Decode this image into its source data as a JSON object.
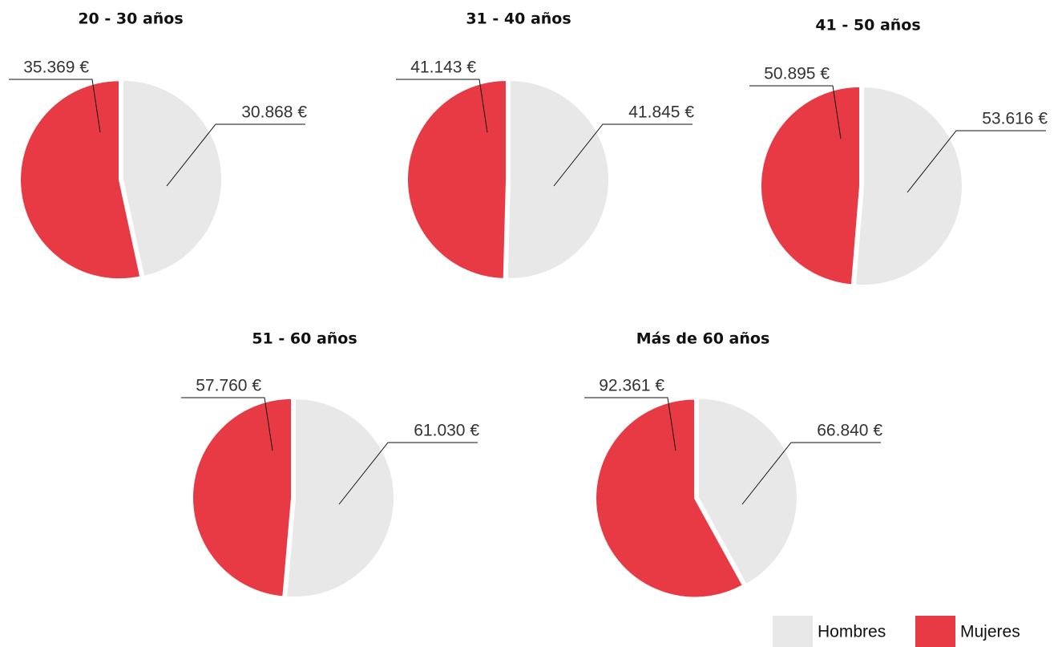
{
  "chart_data": [
    {
      "type": "pie",
      "title": "20 - 30 años",
      "categories": [
        "Hombres",
        "Mujeres"
      ],
      "values": [
        30868,
        35369
      ],
      "value_labels": [
        "30.868 €",
        "35.369 €"
      ],
      "colors": [
        "#e8e8e8",
        "#e83a45"
      ]
    },
    {
      "type": "pie",
      "title": "31 - 40 años",
      "categories": [
        "Hombres",
        "Mujeres"
      ],
      "values": [
        41845,
        41143
      ],
      "value_labels": [
        "41.845 €",
        "41.143 €"
      ],
      "colors": [
        "#e8e8e8",
        "#e83a45"
      ]
    },
    {
      "type": "pie",
      "title": "41 - 50 años",
      "categories": [
        "Hombres",
        "Mujeres"
      ],
      "values": [
        53616,
        50895
      ],
      "value_labels": [
        "53.616 €",
        "50.895 €"
      ],
      "colors": [
        "#e8e8e8",
        "#e83a45"
      ]
    },
    {
      "type": "pie",
      "title": "51 - 60 años",
      "categories": [
        "Hombres",
        "Mujeres"
      ],
      "values": [
        61030,
        57760
      ],
      "value_labels": [
        "61.030 €",
        "57.760 €"
      ],
      "colors": [
        "#e8e8e8",
        "#e83a45"
      ]
    },
    {
      "type": "pie",
      "title": "Más de 60 años",
      "categories": [
        "Hombres",
        "Mujeres"
      ],
      "values": [
        66840,
        92361
      ],
      "value_labels": [
        "66.840 €",
        "92.361 €"
      ],
      "colors": [
        "#e8e8e8",
        "#e83a45"
      ]
    }
  ]
}
